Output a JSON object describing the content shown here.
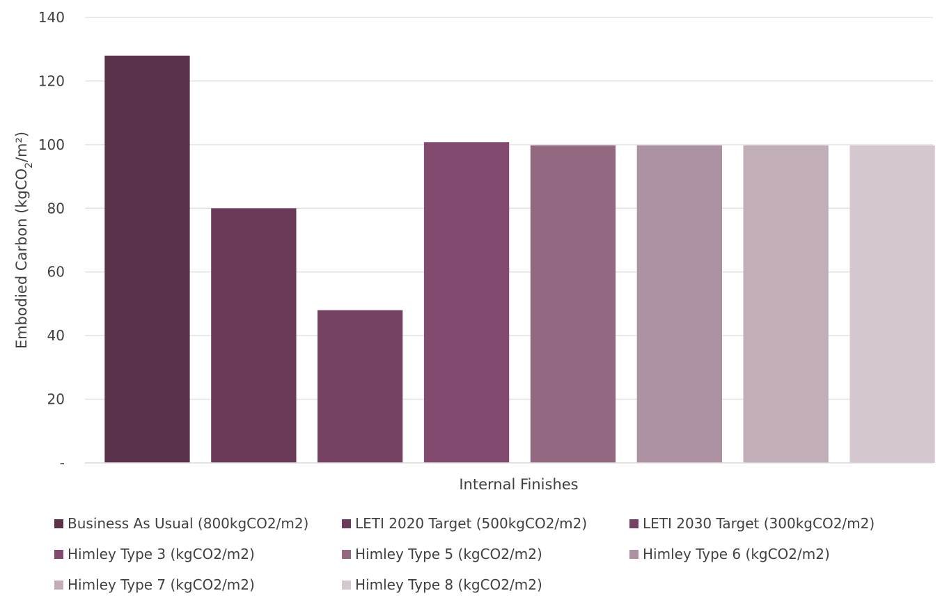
{
  "chart_data": {
    "type": "bar",
    "xlabel": "Internal Finishes",
    "ylabel": "Embodied Carbon (kgCO2/m²)",
    "ylabel_parts": {
      "prefix": "Embodied Carbon (kgCO",
      "subscript": "2",
      "suffix": "/m²)"
    },
    "ylim": [
      0,
      140
    ],
    "yticks": [
      {
        "value": 0,
        "label": "-"
      },
      {
        "value": 20,
        "label": "20"
      },
      {
        "value": 40,
        "label": "40"
      },
      {
        "value": 60,
        "label": "60"
      },
      {
        "value": 80,
        "label": "80"
      },
      {
        "value": 100,
        "label": "100"
      },
      {
        "value": 120,
        "label": "120"
      },
      {
        "value": 140,
        "label": "140"
      }
    ],
    "grid": true,
    "legend_position": "bottom",
    "categories": [
      "Internal Finishes"
    ],
    "series": [
      {
        "name": "Business As Usual (800kgCO2/m2)",
        "values": [
          128
        ],
        "color": "#5a3249"
      },
      {
        "name": "LETI 2020 Target (500kgCO2/m2)",
        "values": [
          80
        ],
        "color": "#6a3a58"
      },
      {
        "name": "LETI 2030 Target (300kgCO2/m2)",
        "values": [
          48
        ],
        "color": "#764264"
      },
      {
        "name": "Himley Type 3 (kgCO2/m2)",
        "values": [
          100.8
        ],
        "color": "#824a6f"
      },
      {
        "name": "Himley Type 5 (kgCO2/m2)",
        "values": [
          99.8
        ],
        "color": "#936982"
      },
      {
        "name": "Himley Type 6 (kgCO2/m2)",
        "values": [
          99.8
        ],
        "color": "#ac91a2"
      },
      {
        "name": "Himley Type 7 (kgCO2/m2)",
        "values": [
          99.8
        ],
        "color": "#c1aeb9"
      },
      {
        "name": "Himley Type 8 (kgCO2/m2)",
        "values": [
          99.8
        ],
        "color": "#d4c7cf"
      }
    ]
  }
}
